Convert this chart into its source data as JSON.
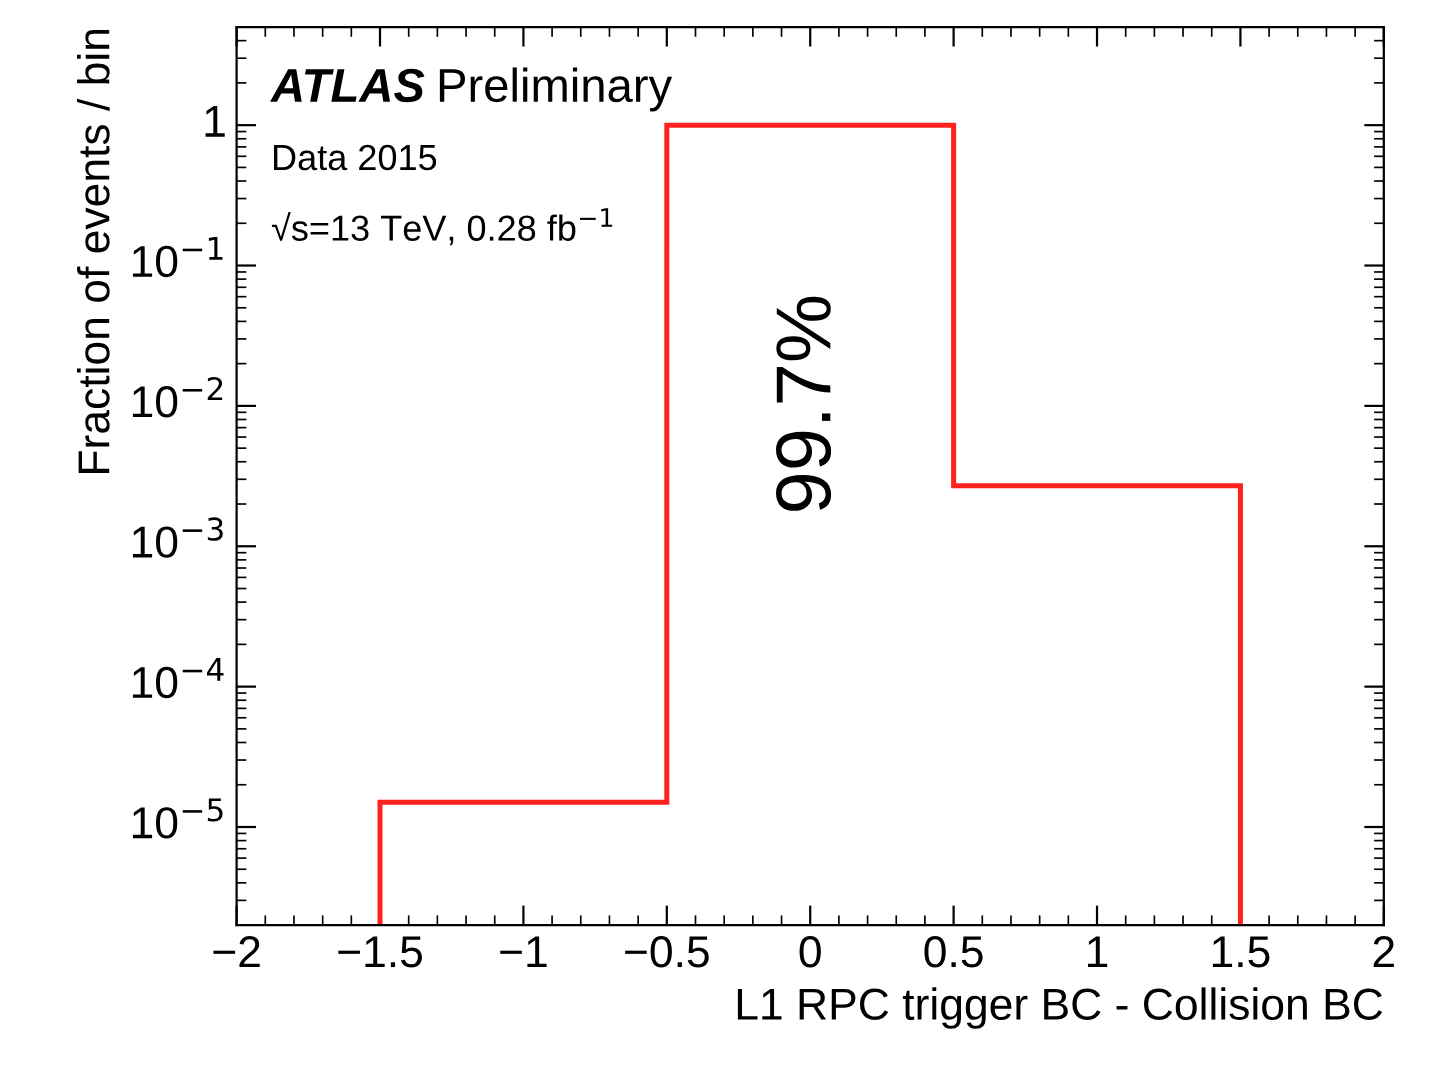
{
  "chart_data": {
    "type": "histogram",
    "xlabel": "L1 RPC trigger BC - Collision BC",
    "ylabel": "Fraction of events / bin",
    "bins": [
      -1.5,
      -0.5,
      0.5,
      1.5
    ],
    "values": [
      1.5e-05,
      1,
      0.0027
    ],
    "color": "#ff2020",
    "xlim": [
      -2,
      2
    ],
    "ylim": [
      2e-06,
      5
    ],
    "log": "y",
    "grid": false,
    "xticks": [
      {
        "value": -2,
        "label": "−2"
      },
      {
        "value": -1.5,
        "label": "−1.5"
      },
      {
        "value": -1,
        "label": "−1"
      },
      {
        "value": -0.5,
        "label": "−0.5"
      },
      0,
      0.5,
      1,
      1.5,
      2
    ],
    "yticks": [
      {
        "value": 1e-05,
        "label": "10$^{−5}$"
      },
      {
        "value": 0.0001,
        "label": "10$^{−4}$"
      },
      {
        "value": 0.001,
        "label": "10$^{−3}$"
      },
      {
        "value": 0.01,
        "label": "10$^{−2}$"
      },
      {
        "value": 0.1,
        "label": "10$^{−1}$"
      },
      1
    ],
    "annotations": [
      "ATLAS",
      "Preliminary",
      "Data 2015",
      "√s=13 TeV, 0.28 fb$^{−1}$",
      "99.7%"
    ]
  }
}
